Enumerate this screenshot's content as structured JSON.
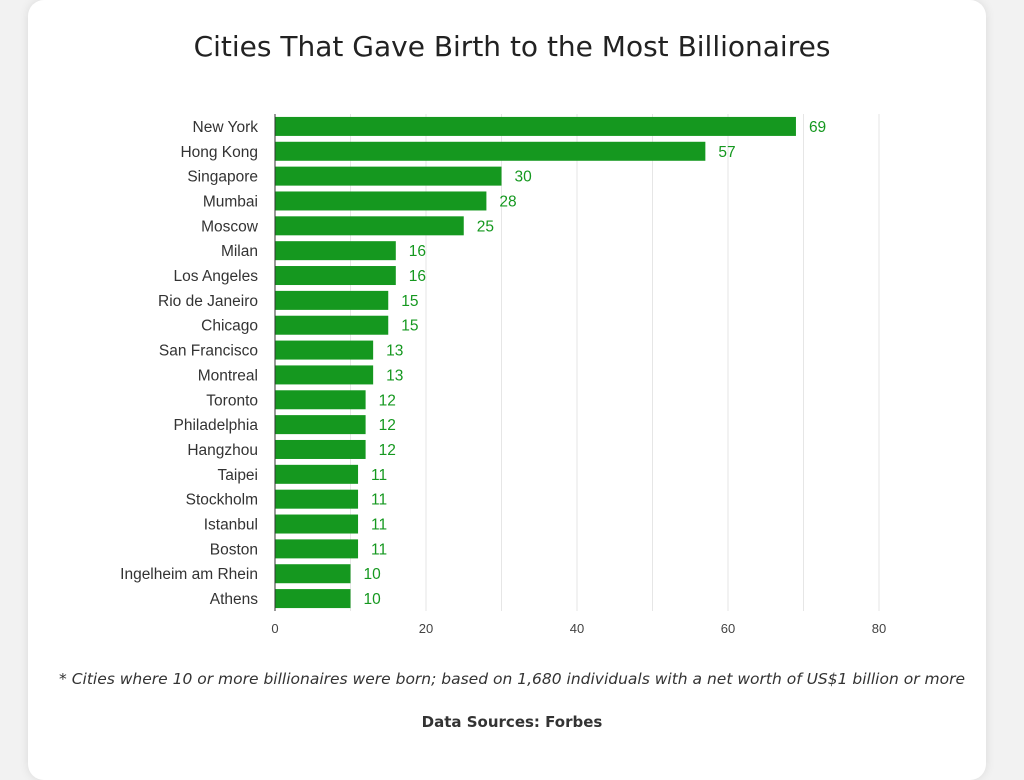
{
  "colors": {
    "bar": "#15981f",
    "value_label": "#15981f",
    "grid": "#e6e6e6",
    "axis": "#333333"
  },
  "footnote": "* Cities where 10 or more billionaires were born; based on 1,680 individuals with a net worth of US$1 billion or more",
  "source": "Data Sources: Forbes",
  "chart_data": {
    "type": "bar",
    "orientation": "horizontal",
    "title": "Cities That Gave Birth to the Most Billionaires",
    "xlabel": "",
    "ylabel": "",
    "xlim": [
      0,
      80
    ],
    "ticks": [
      0,
      20,
      40,
      60,
      80
    ],
    "grid": true,
    "data_labels": true,
    "categories": [
      "New York",
      "Hong Kong",
      "Singapore",
      "Mumbai",
      "Moscow",
      "Milan",
      "Los Angeles",
      "Rio de Janeiro",
      "Chicago",
      "San Francisco",
      "Montreal",
      "Toronto",
      "Philadelphia",
      "Hangzhou",
      "Taipei",
      "Stockholm",
      "Istanbul",
      "Boston",
      "Ingelheim am Rhein",
      "Athens"
    ],
    "values": [
      69,
      57,
      30,
      28,
      25,
      16,
      16,
      15,
      15,
      13,
      13,
      12,
      12,
      12,
      11,
      11,
      11,
      11,
      10,
      10
    ]
  }
}
